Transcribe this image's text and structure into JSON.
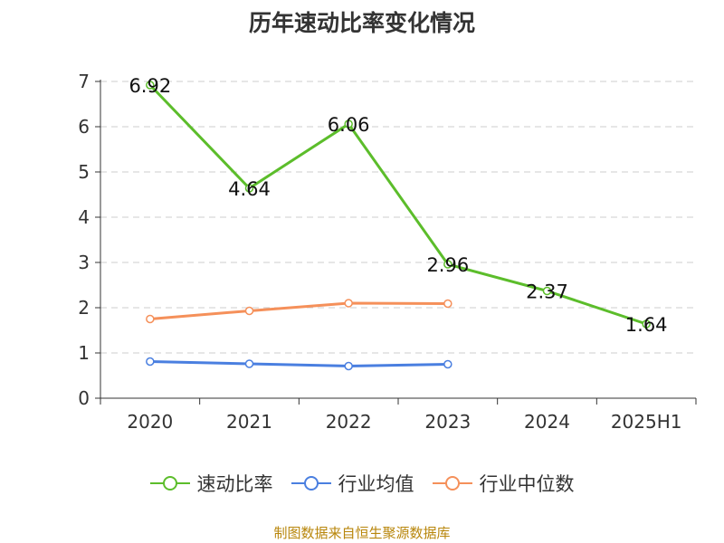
{
  "chart_data": {
    "type": "line",
    "title": "历年速动比率变化情况",
    "categories": [
      "2020",
      "2021",
      "2022",
      "2023",
      "2024",
      "2025H1"
    ],
    "y_ticks": [
      "0",
      "1",
      "2",
      "3",
      "4",
      "5",
      "6",
      "7"
    ],
    "ylim": [
      0,
      7
    ],
    "grid": true,
    "legend_position": "bottom",
    "series": [
      {
        "name": "速动比率",
        "color": "#5cbd2b",
        "values": [
          6.92,
          4.64,
          6.06,
          2.96,
          2.37,
          1.64
        ],
        "labels": [
          "6.92",
          "4.64",
          "6.06",
          "2.96",
          "2.37",
          "1.64"
        ]
      },
      {
        "name": "行业均值",
        "color": "#4a7fe0",
        "values": [
          0.81,
          0.76,
          0.71,
          0.75,
          null,
          null
        ]
      },
      {
        "name": "行业中位数",
        "color": "#f5905a",
        "values": [
          1.75,
          1.93,
          2.1,
          2.09,
          null,
          null
        ]
      }
    ]
  },
  "source_note": "制图数据来自恒生聚源数据库"
}
